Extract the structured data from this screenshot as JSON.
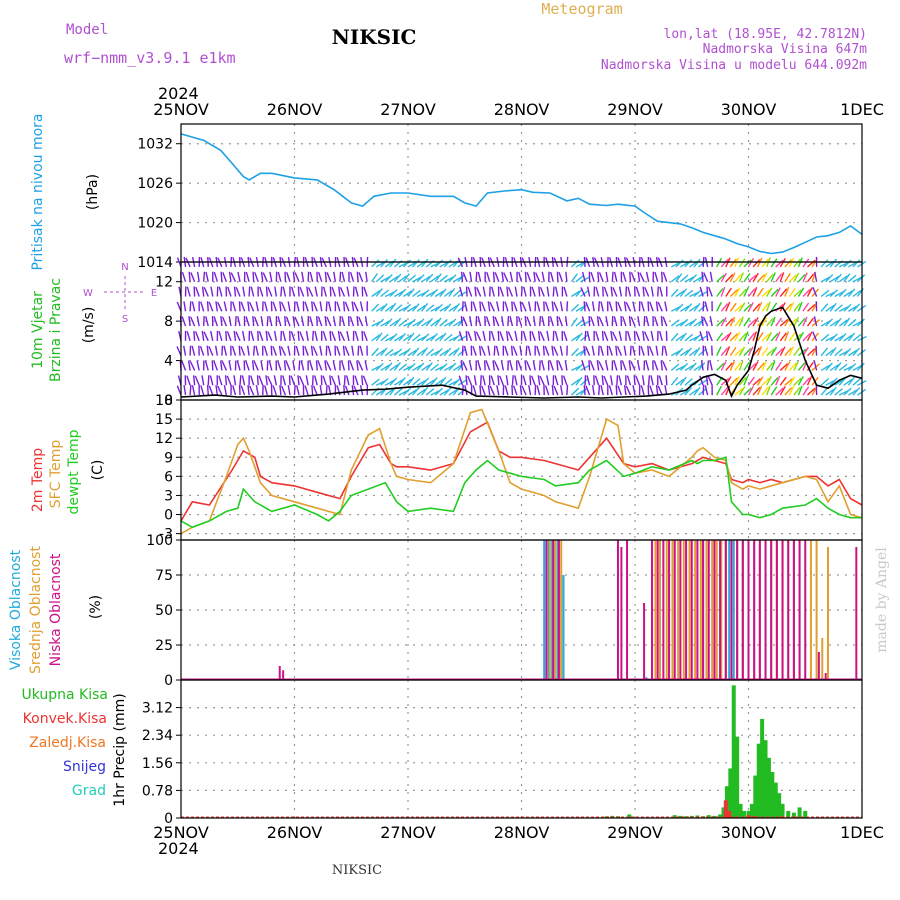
{
  "header": {
    "model_label": "Model",
    "model_name": "wrf−nmm_v3.9.1 e1km",
    "station": "NIKSIC",
    "product": "Meteogram",
    "coords": "lon,lat (18.95E, 42.7812N)",
    "elevation": "Nadmorska Visina 647m",
    "model_elevation": "Nadmorska Visina u modelu 644.092m",
    "year_top": "2024",
    "year_bottom": "2024",
    "footer_station": "NIKSIC",
    "credit": "made by Angel"
  },
  "colors": {
    "pressure": "#1ea0e6",
    "wind_label": "#22bb22",
    "wind_symbol": "#b050d0",
    "barb_main": "#7a1fd8",
    "barb_alt": "#2ab8e0",
    "wind_speed": "#000000",
    "t2m": "#ee3333",
    "tsfc": "#e0a030",
    "dewpt": "#22cc22",
    "cloud_high": "#22aadd",
    "cloud_mid": "#e0a030",
    "cloud_low": "#cc1188",
    "precip_total": "#22bb22",
    "precip_conv": "#ee3333",
    "precip_frz": "#ee7722",
    "precip_snow": "#3333dd",
    "precip_hail": "#22ccbb",
    "grid": "#999999",
    "title": "#000000",
    "header_purple": "#b050d0",
    "header_gold": "#e0b050"
  },
  "time_axis": {
    "top_labels": [
      "25NOV",
      "26NOV",
      "27NOV",
      "28NOV",
      "29NOV",
      "30NOV",
      "1DEC"
    ],
    "bottom_labels": [
      "25NOV",
      "26NOV",
      "27NOV",
      "28NOV",
      "29NOV",
      "30NOV",
      "1DEC"
    ],
    "start_day": 25,
    "month": "NOV",
    "days": 6
  },
  "chart_data": [
    {
      "type": "line",
      "title": "",
      "ylabel": "Pritisak na nivou mora",
      "units": "(hPa)",
      "ylim": [
        1014,
        1035
      ],
      "yticks": [
        "1014",
        "1020",
        "1026",
        "1032"
      ],
      "grid": true,
      "series": [
        {
          "name": "Pritisak na nivou mora",
          "color": "#1ea0e6",
          "x": [
            0,
            0.2,
            0.35,
            0.45,
            0.55,
            0.6,
            0.7,
            0.8,
            1.0,
            1.2,
            1.35,
            1.5,
            1.6,
            1.7,
            1.85,
            2.0,
            2.2,
            2.4,
            2.5,
            2.6,
            2.7,
            2.85,
            3.0,
            3.1,
            3.25,
            3.4,
            3.5,
            3.6,
            3.75,
            3.85,
            4.0,
            4.1,
            4.2,
            4.3,
            4.4,
            4.5,
            4.6,
            4.7,
            4.8,
            4.9,
            5.0,
            5.1,
            5.2,
            5.3,
            5.4,
            5.5,
            5.6,
            5.7,
            5.8,
            5.9,
            6.0
          ],
          "y": [
            1033.5,
            1032.5,
            1031,
            1029,
            1027,
            1026.5,
            1027.5,
            1027.5,
            1026.8,
            1026.5,
            1025,
            1023,
            1022.5,
            1024,
            1024.5,
            1024.5,
            1024,
            1024,
            1023,
            1022.5,
            1024.5,
            1024.8,
            1025,
            1024.6,
            1024.5,
            1023.3,
            1023.7,
            1022.8,
            1022.6,
            1022.8,
            1022.5,
            1021.3,
            1020.2,
            1020,
            1019.8,
            1019.2,
            1018.5,
            1018,
            1017.5,
            1016.8,
            1016.3,
            1015.6,
            1015.3,
            1015.5,
            1016.2,
            1017,
            1017.8,
            1018,
            1018.5,
            1019.5,
            1018.2
          ]
        }
      ]
    },
    {
      "type": "line",
      "title": "",
      "ylabel": "10m Vjetar Brzina i Pravac",
      "units": "(m/s)",
      "ylim": [
        0,
        14
      ],
      "yticks": [
        "0",
        "4",
        "8",
        "12"
      ],
      "grid": true,
      "compass": [
        "N",
        "S",
        "E",
        "W"
      ],
      "series": [
        {
          "name": "10m Vjetar Brzina",
          "color": "#000000",
          "x": [
            0,
            0.3,
            0.5,
            0.8,
            1.0,
            1.3,
            1.6,
            1.8,
            2.0,
            2.3,
            2.5,
            2.6,
            2.9,
            3.2,
            3.5,
            3.7,
            3.9,
            4.1,
            4.3,
            4.45,
            4.5,
            4.6,
            4.7,
            4.8,
            4.85,
            4.9,
            5.0,
            5.05,
            5.1,
            5.15,
            5.2,
            5.3,
            5.4,
            5.5,
            5.6,
            5.7,
            5.8,
            5.9,
            6.0
          ],
          "y": [
            0.3,
            0.5,
            0.3,
            0.4,
            0.3,
            0.6,
            1.0,
            1.1,
            1.3,
            1.5,
            1.0,
            0.4,
            0.3,
            0.2,
            0.3,
            0.2,
            0.3,
            0.4,
            0.6,
            1.0,
            1.5,
            2.3,
            2.6,
            2.0,
            0.4,
            1.5,
            3.0,
            5.0,
            7.5,
            8.5,
            9.0,
            9.4,
            7.5,
            4.0,
            1.5,
            1.2,
            2.0,
            2.5,
            2.2
          ]
        }
      ]
    },
    {
      "type": "line",
      "title": "",
      "ylabel": "2m Temp / SFC Temp / dewpt Temp",
      "units": "(C)",
      "ylim": [
        -4,
        18
      ],
      "yticks": [
        "-3",
        "0",
        "3",
        "6",
        "9",
        "12",
        "15",
        "18"
      ],
      "grid": true,
      "series": [
        {
          "name": "2m Temp",
          "color": "#ee3333",
          "x": [
            0,
            0.1,
            0.25,
            0.45,
            0.55,
            0.65,
            0.7,
            0.8,
            1.0,
            1.2,
            1.4,
            1.5,
            1.65,
            1.75,
            1.85,
            1.9,
            2.0,
            2.2,
            2.4,
            2.55,
            2.7,
            2.8,
            2.9,
            3.0,
            3.2,
            3.3,
            3.5,
            3.6,
            3.75,
            3.9,
            4.0,
            4.15,
            4.3,
            4.5,
            4.55,
            4.6,
            4.7,
            4.8,
            4.85,
            4.95,
            5.0,
            5.1,
            5.2,
            5.3,
            5.5,
            5.6,
            5.7,
            5.8,
            5.9,
            6.0
          ],
          "y": [
            -1,
            2,
            1.5,
            7,
            10,
            9,
            6,
            5,
            4.5,
            3.5,
            2.5,
            6,
            10.5,
            11,
            8,
            7.5,
            7.5,
            7,
            8,
            13,
            14.5,
            10,
            9,
            9,
            8.5,
            8,
            7,
            9,
            12,
            8,
            7.5,
            8,
            7,
            8,
            8.5,
            9,
            8.5,
            8,
            5.5,
            5,
            5.5,
            5,
            5.5,
            5,
            6,
            6,
            4.5,
            5.5,
            2.5,
            1.5
          ]
        },
        {
          "name": "SFC Temp",
          "color": "#e0a030",
          "x": [
            0,
            0.1,
            0.25,
            0.4,
            0.5,
            0.55,
            0.6,
            0.7,
            0.8,
            1.0,
            1.2,
            1.4,
            1.5,
            1.65,
            1.75,
            1.85,
            1.9,
            2.0,
            2.2,
            2.4,
            2.55,
            2.65,
            2.8,
            2.9,
            3.0,
            3.2,
            3.3,
            3.5,
            3.6,
            3.75,
            3.85,
            3.9,
            4.0,
            4.15,
            4.3,
            4.5,
            4.55,
            4.6,
            4.7,
            4.8,
            4.85,
            4.95,
            5.0,
            5.1,
            5.3,
            5.5,
            5.6,
            5.7,
            5.8,
            5.9,
            6.0
          ],
          "y": [
            -3,
            -2,
            -1,
            6,
            11,
            12,
            10,
            5,
            3,
            2,
            1,
            0,
            7,
            12.5,
            13.5,
            8,
            6,
            5.5,
            5,
            8,
            16,
            16.5,
            10,
            5,
            4,
            3,
            2,
            1,
            6,
            15,
            14,
            8,
            6.5,
            7,
            6,
            9,
            10,
            10.5,
            9,
            8.5,
            5,
            4,
            4.5,
            4,
            5,
            6,
            5.5,
            2,
            4.5,
            0,
            -0.5
          ]
        },
        {
          "name": "dewpt Temp",
          "color": "#22cc22",
          "x": [
            0,
            0.1,
            0.25,
            0.4,
            0.5,
            0.55,
            0.65,
            0.8,
            1.0,
            1.2,
            1.3,
            1.4,
            1.5,
            1.65,
            1.8,
            1.9,
            2.0,
            2.2,
            2.4,
            2.5,
            2.6,
            2.7,
            2.8,
            2.9,
            3.0,
            3.2,
            3.3,
            3.5,
            3.6,
            3.75,
            3.9,
            4.0,
            4.15,
            4.3,
            4.5,
            4.55,
            4.6,
            4.7,
            4.8,
            4.85,
            4.95,
            5.0,
            5.1,
            5.2,
            5.3,
            5.5,
            5.6,
            5.7,
            5.8,
            5.9,
            6.0
          ],
          "y": [
            -1,
            -2,
            -1,
            0.5,
            1,
            4,
            2,
            0.5,
            1.5,
            0,
            -1,
            0.5,
            3,
            4,
            5,
            2,
            0.5,
            1,
            0.5,
            5,
            7,
            8.5,
            7,
            6.5,
            6,
            5.5,
            4.5,
            5,
            7,
            8.5,
            6,
            6.5,
            7.5,
            7,
            8.5,
            8,
            8.5,
            8.5,
            9,
            2,
            0,
            0,
            -0.5,
            0,
            1,
            1.5,
            2.5,
            1,
            0,
            -0.5,
            -0.5
          ]
        }
      ]
    },
    {
      "type": "bar",
      "title": "",
      "ylabel": "Visoka Oblacnost / Srednja Oblacnost / Niska Oblacnost",
      "units": "(%)",
      "ylim": [
        0,
        100
      ],
      "yticks": [
        "0",
        "25",
        "50",
        "75",
        "100"
      ],
      "grid": true,
      "series": [
        {
          "name": "Visoka Oblacnost",
          "color": "#22aadd",
          "x": [
            3.2,
            3.22,
            3.24,
            3.27,
            3.3,
            3.32,
            3.35,
            3.37,
            4.1,
            4.15,
            4.3,
            4.6,
            4.75,
            4.8,
            4.83,
            4.87,
            4.9,
            4.95
          ],
          "y": [
            100,
            100,
            100,
            100,
            100,
            100,
            75,
            75,
            2,
            2,
            2,
            100,
            100,
            100,
            100,
            100,
            100,
            100
          ]
        },
        {
          "name": "Srednja Oblacnost",
          "color": "#e0a030",
          "x": [
            3.25,
            3.3,
            3.35,
            4.18,
            4.22,
            4.28,
            4.33,
            4.38,
            4.43,
            4.48,
            4.53,
            4.58,
            4.63,
            4.68,
            4.72,
            4.76,
            4.8,
            4.85,
            4.9,
            4.95,
            5.05,
            5.1,
            5.15,
            5.2,
            5.25,
            5.3,
            5.35,
            5.4,
            5.45,
            5.55,
            5.6,
            5.65,
            5.7
          ],
          "y": [
            100,
            100,
            100,
            100,
            100,
            100,
            100,
            100,
            100,
            100,
            100,
            100,
            100,
            100,
            100,
            100,
            100,
            100,
            100,
            100,
            100,
            100,
            100,
            100,
            100,
            100,
            100,
            100,
            100,
            100,
            100,
            30,
            95
          ]
        },
        {
          "name": "Niska Oblacnost",
          "color": "#cc1188",
          "x": [
            0.87,
            0.9,
            3.22,
            3.28,
            3.33,
            3.85,
            3.88,
            3.93,
            4.08,
            4.15,
            4.2,
            4.25,
            4.3,
            4.35,
            4.4,
            4.45,
            4.5,
            4.55,
            4.6,
            4.65,
            4.7,
            4.75,
            4.8,
            4.85,
            4.9,
            4.95,
            5.0,
            5.05,
            5.1,
            5.15,
            5.2,
            5.25,
            5.3,
            5.35,
            5.4,
            5.45,
            5.5,
            5.62,
            5.68,
            5.95
          ],
          "y": [
            10,
            7,
            100,
            100,
            100,
            100,
            95,
            100,
            55,
            100,
            100,
            100,
            100,
            100,
            100,
            100,
            100,
            100,
            100,
            100,
            100,
            100,
            100,
            100,
            100,
            100,
            100,
            100,
            100,
            100,
            100,
            100,
            100,
            100,
            100,
            100,
            100,
            20,
            5,
            95
          ]
        }
      ]
    },
    {
      "type": "bar",
      "title": "",
      "ylabel": "1hr Precip",
      "units": "(mm)",
      "ylim": [
        0,
        3.9
      ],
      "yticks": [
        "0",
        "0.78",
        "1.56",
        "2.34",
        "3.12"
      ],
      "grid": true,
      "legend": [
        "Ukupna Kisa",
        "Konvek.Kisa",
        "Zaledj.Kisa",
        "Snijeg",
        "Grad"
      ],
      "series": [
        {
          "name": "Ukupna Kisa",
          "color": "#22bb22",
          "x": [
            3.75,
            3.8,
            3.85,
            3.95,
            4.35,
            4.4,
            4.45,
            4.5,
            4.55,
            4.6,
            4.65,
            4.7,
            4.75,
            4.78,
            4.81,
            4.84,
            4.87,
            4.9,
            4.93,
            4.96,
            5.0,
            5.03,
            5.06,
            5.09,
            5.12,
            5.15,
            5.18,
            5.21,
            5.24,
            5.27,
            5.3,
            5.35,
            5.4,
            5.45,
            5.5
          ],
          "y": [
            0.05,
            0.06,
            0.05,
            0.1,
            0.08,
            0.06,
            0.05,
            0.06,
            0.07,
            0.05,
            0.08,
            0.06,
            0.1,
            0.3,
            0.9,
            1.4,
            3.75,
            2.3,
            0.4,
            0.2,
            0.2,
            0.4,
            1.2,
            2.1,
            2.8,
            2.2,
            1.7,
            1.3,
            1.0,
            0.7,
            0.4,
            0.2,
            0.15,
            0.3,
            0.2
          ]
        },
        {
          "name": "Konvek.Kisa",
          "color": "#ee3333",
          "x": [
            4.8,
            4.83,
            5.0,
            5.05,
            5.3,
            5.4
          ],
          "y": [
            0.5,
            0.2,
            0.08,
            0.05,
            0.05,
            0.04
          ]
        },
        {
          "name": "Zaledj.Kisa",
          "color": "#ee7722",
          "x": [
            4.78,
            4.81
          ],
          "y": [
            0.03,
            0.02
          ]
        }
      ]
    }
  ],
  "barbs": {
    "rows_y": [
      0.5,
      1.5,
      3,
      4.5,
      6,
      7.5,
      9,
      10.5,
      12,
      13.5
    ]
  }
}
